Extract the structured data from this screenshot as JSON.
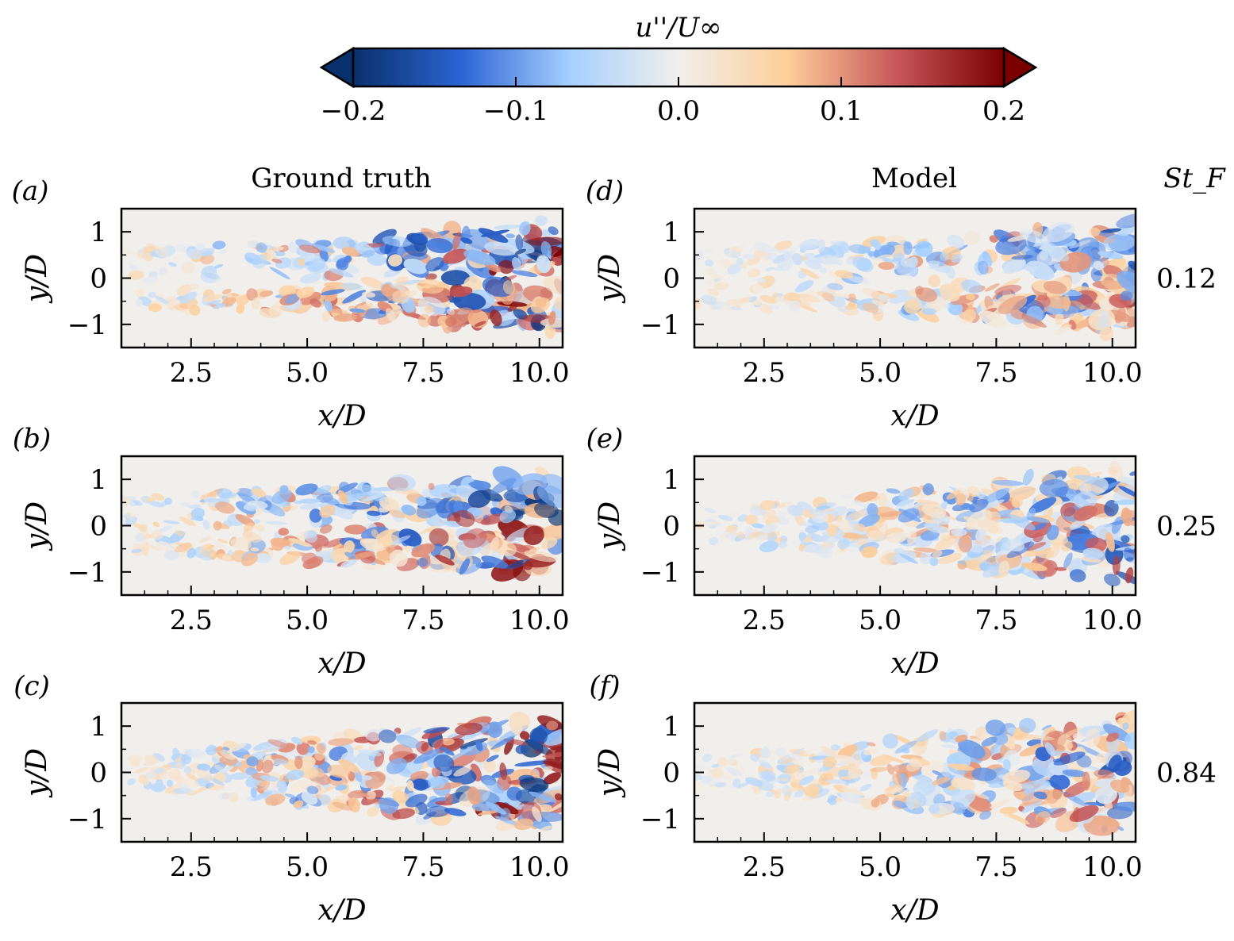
{
  "colorbar": {
    "label": "u''/U∞",
    "ticks": [
      "−0.2",
      "−0.1",
      "0.0",
      "0.1",
      "0.2"
    ],
    "range": [
      -0.2,
      0.2
    ],
    "extend": "both",
    "colormap": "RdBu_r",
    "colors": [
      "#08306b",
      "#2c65d4",
      "#a6d0ff",
      "#f1efec",
      "#fdcf9b",
      "#c8585a",
      "#7a0000"
    ]
  },
  "columns": {
    "left_title": "Ground truth",
    "right_title": "Model",
    "stf_header": "St_F"
  },
  "chart_data": [
    {
      "type": "heatmap",
      "panel": "(a)",
      "column": "Ground truth",
      "St_F": "0.12",
      "xlabel": "x/D",
      "ylabel": "y/D",
      "xlim": [
        1.0,
        10.5
      ],
      "ylim": [
        -1.5,
        1.5
      ],
      "xticks": [
        "2.5",
        "5.0",
        "7.5",
        "10.0"
      ],
      "yticks": [
        "1",
        "0",
        "−1"
      ],
      "value_range": [
        -0.2,
        0.2
      ]
    },
    {
      "type": "heatmap",
      "panel": "(b)",
      "column": "Ground truth",
      "St_F": "0.25",
      "xlabel": "x/D",
      "ylabel": "y/D",
      "xlim": [
        1.0,
        10.5
      ],
      "ylim": [
        -1.5,
        1.5
      ],
      "xticks": [
        "2.5",
        "5.0",
        "7.5",
        "10.0"
      ],
      "yticks": [
        "1",
        "0",
        "−1"
      ],
      "value_range": [
        -0.2,
        0.2
      ]
    },
    {
      "type": "heatmap",
      "panel": "(c)",
      "column": "Ground truth",
      "St_F": "0.84",
      "xlabel": "x/D",
      "ylabel": "y/D",
      "xlim": [
        1.0,
        10.5
      ],
      "ylim": [
        -1.5,
        1.5
      ],
      "xticks": [
        "2.5",
        "5.0",
        "7.5",
        "10.0"
      ],
      "yticks": [
        "1",
        "0",
        "−1"
      ],
      "value_range": [
        -0.2,
        0.2
      ]
    },
    {
      "type": "heatmap",
      "panel": "(d)",
      "column": "Model",
      "St_F": "0.12",
      "xlabel": "x/D",
      "ylabel": "y/D",
      "xlim": [
        1.0,
        10.5
      ],
      "ylim": [
        -1.5,
        1.5
      ],
      "xticks": [
        "2.5",
        "5.0",
        "7.5",
        "10.0"
      ],
      "yticks": [
        "1",
        "0",
        "−1"
      ],
      "value_range": [
        -0.2,
        0.2
      ]
    },
    {
      "type": "heatmap",
      "panel": "(e)",
      "column": "Model",
      "St_F": "0.25",
      "xlabel": "x/D",
      "ylabel": "y/D",
      "xlim": [
        1.0,
        10.5
      ],
      "ylim": [
        -1.5,
        1.5
      ],
      "xticks": [
        "2.5",
        "5.0",
        "7.5",
        "10.0"
      ],
      "yticks": [
        "1",
        "0",
        "−1"
      ],
      "value_range": [
        -0.2,
        0.2
      ]
    },
    {
      "type": "heatmap",
      "panel": "(f)",
      "column": "Model",
      "St_F": "0.84",
      "xlabel": "x/D",
      "ylabel": "y/D",
      "xlim": [
        1.0,
        10.5
      ],
      "ylim": [
        -1.5,
        1.5
      ],
      "xticks": [
        "2.5",
        "5.0",
        "7.5",
        "10.0"
      ],
      "yticks": [
        "1",
        "0",
        "−1"
      ],
      "value_range": [
        -0.2,
        0.2
      ]
    }
  ]
}
